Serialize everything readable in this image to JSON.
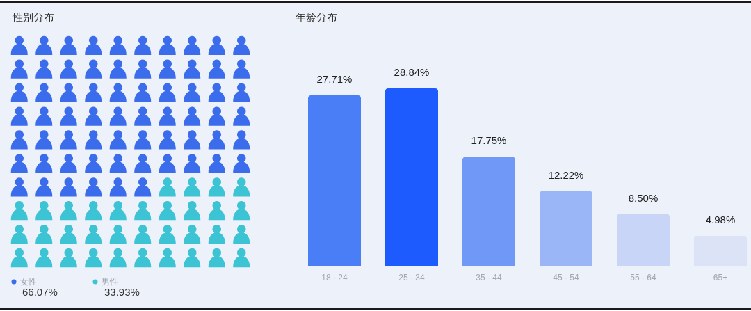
{
  "chart_data": [
    {
      "type": "other",
      "title": "性别分布",
      "series": [
        {
          "name": "女性",
          "color": "#3b6cec",
          "values": [
            66.07
          ],
          "value_labels": [
            "66.07%"
          ]
        },
        {
          "name": "男性",
          "color": "#3cc3d4",
          "values": [
            33.93
          ],
          "value_labels": [
            "33.93%"
          ]
        }
      ],
      "legend": "bottom left"
    },
    {
      "type": "bar",
      "title": "年龄分布",
      "categories": [
        "18 - 24",
        "25 - 34",
        "35 - 44",
        "45 - 54",
        "55 - 64",
        "65+"
      ],
      "values": [
        27.71,
        28.84,
        17.75,
        12.22,
        8.5,
        4.98
      ],
      "colors": [
        "#4a7ef7",
        "#1e5bff",
        "#7098f7",
        "#9bb6f7",
        "#c9d5f7",
        "#dce3f7"
      ],
      "value_labels": [
        "27.71%",
        "28.84%",
        "17.75%",
        "12.22%",
        "8.50%",
        "4.98%"
      ],
      "tick_labels": "x"
    }
  ]
}
